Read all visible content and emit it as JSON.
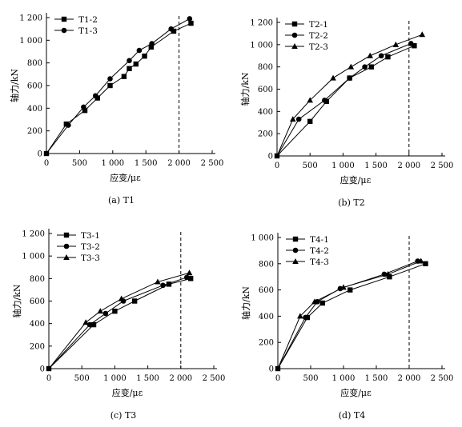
{
  "chart_data": [
    {
      "type": "line",
      "caption": "(a) T1",
      "xlabel": "应变/με",
      "ylabel": "轴力/kN",
      "xlim": [
        0,
        2500
      ],
      "ylim": [
        0,
        1200
      ],
      "xticks": [
        0,
        500,
        1000,
        1500,
        2000,
        2500
      ],
      "xtick_labels": [
        "0",
        "500",
        "1 000",
        "1 500",
        "2 000",
        "2 500"
      ],
      "yticks": [
        0,
        200,
        400,
        600,
        800,
        1000,
        1200
      ],
      "ytick_labels": [
        "0",
        "200",
        "400",
        "600",
        "800",
        "1 000",
        "1 200"
      ],
      "reference_line_x": 2000,
      "legend_position": "top-left",
      "series": [
        {
          "name": "T1-2",
          "marker": "square",
          "x": [
            0,
            300,
            580,
            770,
            960,
            1170,
            1250,
            1350,
            1480,
            1580,
            1920,
            2180
          ],
          "y": [
            0,
            260,
            380,
            490,
            600,
            680,
            750,
            790,
            860,
            940,
            1080,
            1150
          ]
        },
        {
          "name": "T1-3",
          "marker": "circle",
          "x": [
            0,
            330,
            560,
            740,
            960,
            1250,
            1400,
            1590,
            1880,
            2160
          ],
          "y": [
            0,
            250,
            410,
            510,
            660,
            820,
            910,
            970,
            1100,
            1190
          ]
        }
      ]
    },
    {
      "type": "line",
      "caption": "(b) T2",
      "xlabel": "应变/με",
      "ylabel": "轴力/kN",
      "xlim": [
        0,
        2500
      ],
      "ylim": [
        0,
        1200
      ],
      "xticks": [
        0,
        500,
        1000,
        1500,
        2000,
        2500
      ],
      "xtick_labels": [
        "0",
        "500",
        "1 000",
        "1 500",
        "2 000",
        "2 500"
      ],
      "yticks": [
        0,
        200,
        400,
        600,
        800,
        1000,
        1200
      ],
      "ytick_labels": [
        "0",
        "200",
        "400",
        "600",
        "800",
        "1 000",
        "1 200"
      ],
      "reference_line_x": 2000,
      "legend_position": "top-left",
      "series": [
        {
          "name": "T2-1",
          "marker": "square",
          "x": [
            0,
            500,
            750,
            1100,
            1430,
            1680,
            2080
          ],
          "y": [
            0,
            310,
            490,
            700,
            800,
            890,
            990
          ]
        },
        {
          "name": "T2-2",
          "marker": "circle",
          "x": [
            0,
            330,
            720,
            1100,
            1330,
            1580,
            2030
          ],
          "y": [
            0,
            330,
            500,
            700,
            800,
            900,
            1010
          ]
        },
        {
          "name": "T2-3",
          "marker": "triangle",
          "x": [
            0,
            240,
            500,
            850,
            1120,
            1410,
            1800,
            2200
          ],
          "y": [
            0,
            330,
            500,
            700,
            800,
            900,
            1000,
            1090
          ]
        }
      ]
    },
    {
      "type": "line",
      "caption": "(c) T3",
      "xlabel": "应变/με",
      "ylabel": "轴力/kN",
      "xlim": [
        0,
        2500
      ],
      "ylim": [
        0,
        1200
      ],
      "xticks": [
        0,
        500,
        1000,
        1500,
        2000,
        2500
      ],
      "xtick_labels": [
        "0",
        "500",
        "1 000",
        "1 500",
        "2 000",
        "2 500"
      ],
      "yticks": [
        0,
        200,
        400,
        600,
        800,
        1000,
        1200
      ],
      "ytick_labels": [
        "0",
        "200",
        "400",
        "600",
        "800",
        "1 000",
        "1 200"
      ],
      "reference_line_x": 2000,
      "legend_position": "top-left",
      "series": [
        {
          "name": "T3-1",
          "marker": "square",
          "x": [
            0,
            680,
            1000,
            1300,
            1820,
            2150
          ],
          "y": [
            0,
            390,
            510,
            600,
            750,
            800
          ]
        },
        {
          "name": "T3-2",
          "marker": "circle",
          "x": [
            0,
            620,
            860,
            1130,
            1730,
            2090
          ],
          "y": [
            0,
            390,
            490,
            600,
            740,
            810
          ]
        },
        {
          "name": "T3-3",
          "marker": "triangle",
          "x": [
            0,
            560,
            780,
            1100,
            1650,
            2130
          ],
          "y": [
            0,
            410,
            510,
            620,
            770,
            850
          ]
        }
      ]
    },
    {
      "type": "line",
      "caption": "(d) T4",
      "xlabel": "应变/με",
      "ylabel": "轴力/kN",
      "xlim": [
        0,
        2500
      ],
      "ylim": [
        0,
        1000
      ],
      "xticks": [
        0,
        500,
        1000,
        1500,
        2000,
        2500
      ],
      "xtick_labels": [
        "0",
        "500",
        "1 000",
        "1 500",
        "2 000",
        "2 500"
      ],
      "yticks": [
        0,
        200,
        400,
        600,
        800,
        1000
      ],
      "ytick_labels": [
        "0",
        "200",
        "400",
        "600",
        "800",
        "1 000"
      ],
      "reference_line_x": 2000,
      "legend_position": "top-left",
      "series": [
        {
          "name": "T4-1",
          "marker": "square",
          "x": [
            0,
            450,
            680,
            1100,
            1700,
            2250
          ],
          "y": [
            0,
            390,
            500,
            600,
            700,
            800
          ]
        },
        {
          "name": "T4-2",
          "marker": "circle",
          "x": [
            0,
            420,
            600,
            950,
            1620,
            2130
          ],
          "y": [
            0,
            390,
            510,
            610,
            720,
            820
          ]
        },
        {
          "name": "T4-3",
          "marker": "triangle",
          "x": [
            0,
            340,
            560,
            1000,
            1680,
            2180
          ],
          "y": [
            0,
            400,
            510,
            620,
            720,
            820
          ]
        }
      ]
    }
  ]
}
